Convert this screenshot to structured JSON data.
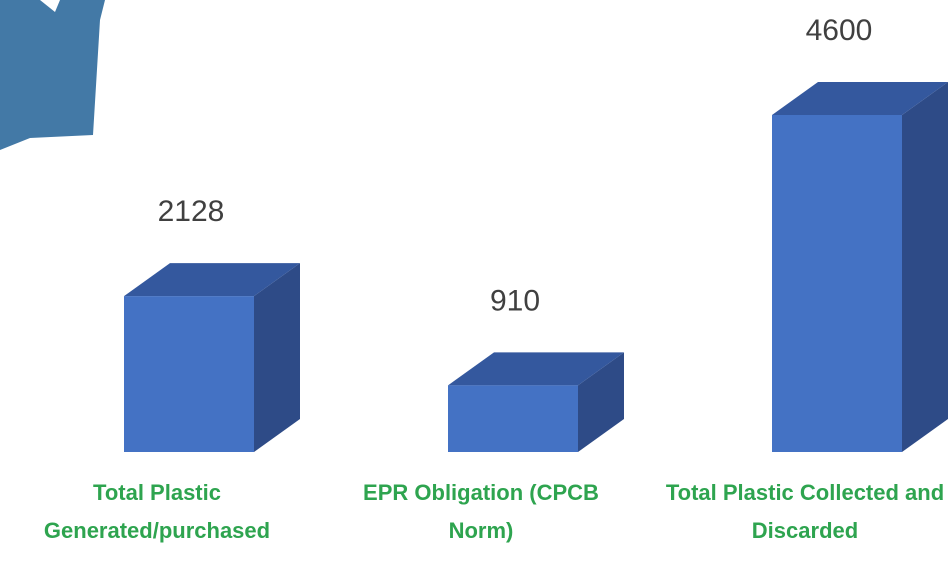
{
  "chart_data": {
    "type": "bar3d",
    "categories": [
      "Total Plastic Generated/purchased",
      "EPR Obligation (CPCB Norm)",
      "Total Plastic Collected and Discarded"
    ],
    "values": [
      2128,
      910,
      4600
    ],
    "color": "#4472c4"
  }
}
